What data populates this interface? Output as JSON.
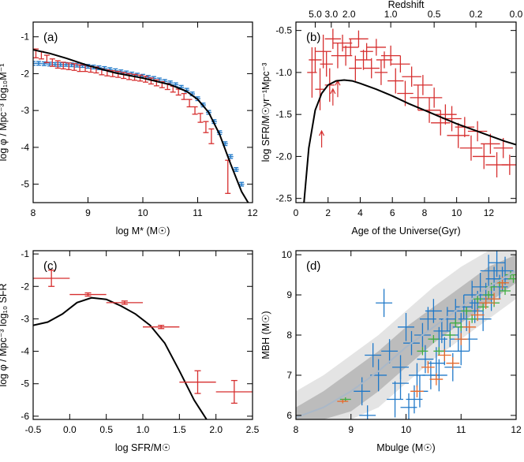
{
  "chart_data": [
    {
      "id": "a",
      "type": "scatter",
      "panel_label": "(a)",
      "xlabel": "log M* (M☉)",
      "ylabel": "log φ / Mpc⁻³ log₁₀M⁻¹",
      "xlim": [
        8,
        12
      ],
      "ylim": [
        -5.5,
        -0.6
      ],
      "xticks": [
        8,
        9,
        10,
        11,
        12
      ],
      "yticks": [
        -1,
        -2,
        -3,
        -4,
        -5
      ],
      "colors": {
        "red": "#d62f2f",
        "blue": "#1f78c8",
        "model": "#000000"
      },
      "series": [
        {
          "style": "red-errorbar",
          "x": [
            8.05,
            8.15,
            8.25,
            8.35,
            8.45,
            8.55,
            8.65,
            8.75,
            8.85,
            8.95,
            9.05,
            9.15,
            9.25,
            9.35,
            9.45,
            9.55,
            9.65,
            9.75,
            9.85,
            9.95,
            10.05,
            10.15,
            10.25,
            10.35,
            10.45,
            10.55,
            10.65,
            10.75,
            10.85,
            10.95,
            11.05,
            11.15,
            11.25,
            11.55
          ],
          "y": [
            -1.45,
            -1.5,
            -1.6,
            -1.7,
            -1.75,
            -1.78,
            -1.8,
            -1.82,
            -1.85,
            -1.85,
            -1.88,
            -1.9,
            -1.95,
            -1.98,
            -2.0,
            -2.02,
            -2.05,
            -2.08,
            -2.1,
            -2.12,
            -2.15,
            -2.2,
            -2.25,
            -2.3,
            -2.35,
            -2.42,
            -2.5,
            -2.62,
            -2.8,
            -3.0,
            -3.2,
            -3.45,
            -3.7,
            -4.8
          ],
          "yerr": [
            0.12,
            0.1,
            0.1,
            0.1,
            0.1,
            0.09,
            0.09,
            0.09,
            0.09,
            0.09,
            0.08,
            0.08,
            0.08,
            0.08,
            0.08,
            0.08,
            0.08,
            0.08,
            0.08,
            0.08,
            0.08,
            0.08,
            0.08,
            0.08,
            0.08,
            0.08,
            0.08,
            0.08,
            0.1,
            0.1,
            0.12,
            0.15,
            0.2,
            0.45
          ]
        },
        {
          "style": "blue-errorbar",
          "x": [
            8.0,
            8.1,
            8.2,
            8.3,
            8.4,
            8.5,
            8.6,
            8.7,
            8.8,
            8.9,
            9.0,
            9.1,
            9.2,
            9.3,
            9.4,
            9.5,
            9.6,
            9.7,
            9.8,
            9.9,
            10.0,
            10.1,
            10.2,
            10.3,
            10.4,
            10.5,
            10.6,
            10.7,
            10.8,
            10.9,
            11.0,
            11.1,
            11.2,
            11.3,
            11.4,
            11.5,
            11.6,
            11.7,
            11.8
          ],
          "y": [
            -1.72,
            -1.72,
            -1.73,
            -1.74,
            -1.75,
            -1.75,
            -1.75,
            -1.76,
            -1.77,
            -1.78,
            -1.8,
            -1.82,
            -1.84,
            -1.86,
            -1.89,
            -1.92,
            -1.95,
            -1.98,
            -2.01,
            -2.04,
            -2.07,
            -2.1,
            -2.13,
            -2.17,
            -2.21,
            -2.25,
            -2.3,
            -2.37,
            -2.45,
            -2.55,
            -2.68,
            -2.85,
            -3.05,
            -3.3,
            -3.6,
            -3.9,
            -4.25,
            -4.6,
            -5.0
          ],
          "xerr": 0.05,
          "yerr": 0.05
        }
      ],
      "model": {
        "x": [
          8.0,
          8.3,
          8.6,
          9.0,
          9.5,
          10.0,
          10.5,
          10.8,
          11.0,
          11.2,
          11.4,
          11.6,
          11.8,
          12.0
        ],
        "y": [
          -1.35,
          -1.45,
          -1.58,
          -1.78,
          -1.98,
          -2.12,
          -2.3,
          -2.48,
          -2.7,
          -3.05,
          -3.65,
          -4.45,
          -5.2,
          -5.7
        ]
      }
    },
    {
      "id": "b",
      "type": "scatter",
      "panel_label": "(b)",
      "xlabel": "Age of the Universe(Gyr)",
      "ylabel": "log SFR/M☉yr⁻¹Mpc⁻³",
      "top_axis_title": "Redshift",
      "top_ticks": [
        {
          "label": "5.0",
          "age": 1.2
        },
        {
          "label": "3.0",
          "age": 2.2
        },
        {
          "label": "2.0",
          "age": 3.3
        },
        {
          "label": "1.0",
          "age": 5.9
        },
        {
          "label": "0.5",
          "age": 8.6
        },
        {
          "label": "0.2",
          "age": 11.2
        },
        {
          "label": "0.0",
          "age": 13.7
        }
      ],
      "xlim": [
        0,
        13.7
      ],
      "ylim": [
        -2.55,
        -0.4
      ],
      "xticks": [
        0,
        2,
        4,
        6,
        8,
        10,
        12
      ],
      "yticks": [
        -0.5,
        -1.0,
        -1.5,
        -2.0,
        -2.5
      ],
      "colors": {
        "red": "#d62f2f",
        "model": "#000000"
      },
      "points": {
        "x": [
          1.0,
          1.2,
          1.5,
          1.7,
          1.9,
          2.1,
          2.3,
          2.6,
          2.9,
          3.1,
          3.4,
          3.7,
          3.9,
          4.2,
          4.4,
          4.7,
          5.0,
          5.3,
          5.5,
          5.9,
          6.2,
          6.5,
          6.8,
          7.2,
          7.6,
          7.9,
          8.3,
          8.6,
          9.0,
          9.3,
          9.7,
          10.1,
          10.5,
          10.9,
          11.3,
          11.7,
          12.1,
          12.5,
          12.9,
          13.3
        ],
        "y": [
          -1.0,
          -0.85,
          -1.2,
          -0.75,
          -0.9,
          -1.15,
          -0.6,
          -0.8,
          -0.65,
          -0.8,
          -0.7,
          -0.95,
          -0.6,
          -0.85,
          -0.75,
          -0.95,
          -0.7,
          -1.0,
          -0.85,
          -0.8,
          -1.1,
          -0.9,
          -1.25,
          -1.05,
          -1.3,
          -1.15,
          -1.45,
          -1.3,
          -1.6,
          -1.5,
          -1.55,
          -1.75,
          -1.65,
          -1.9,
          -1.7,
          -2.0,
          -1.85,
          -2.1,
          -1.9,
          -2.1
        ],
        "xerr": [
          0.3,
          0.4,
          0.3,
          0.5,
          0.4,
          0.3,
          0.5,
          0.4,
          0.6,
          0.4,
          0.5,
          0.4,
          0.6,
          0.5,
          0.4,
          0.5,
          0.6,
          0.4,
          0.5,
          0.6,
          0.5,
          0.6,
          0.5,
          0.6,
          0.5,
          0.6,
          0.7,
          0.5,
          0.6,
          0.7,
          0.6,
          0.7,
          0.6,
          0.7,
          0.6,
          0.7,
          0.6,
          0.7,
          0.6,
          0.5
        ],
        "yerr": [
          0.3,
          0.15,
          0.25,
          0.2,
          0.15,
          0.2,
          0.12,
          0.15,
          0.1,
          0.12,
          0.1,
          0.15,
          0.1,
          0.12,
          0.1,
          0.12,
          0.1,
          0.15,
          0.1,
          0.12,
          0.15,
          0.1,
          0.15,
          0.12,
          0.15,
          0.12,
          0.15,
          0.12,
          0.15,
          0.12,
          0.15,
          0.15,
          0.12,
          0.15,
          0.12,
          0.15,
          0.12,
          0.15,
          0.12,
          0.12
        ]
      },
      "lower_limits": [
        {
          "x": 1.6,
          "y": -1.8
        },
        {
          "x": 2.3,
          "y": -1.3
        },
        {
          "x": 2.6,
          "y": -1.2
        }
      ],
      "model": {
        "x": [
          0.5,
          0.8,
          1.2,
          1.6,
          2.0,
          2.5,
          3.0,
          3.5,
          4.0,
          5.0,
          6.0,
          7.0,
          8.0,
          9.0,
          10.0,
          11.0,
          12.0,
          13.0,
          13.7
        ],
        "y": [
          -2.55,
          -1.9,
          -1.45,
          -1.25,
          -1.15,
          -1.1,
          -1.09,
          -1.1,
          -1.13,
          -1.2,
          -1.28,
          -1.37,
          -1.45,
          -1.53,
          -1.61,
          -1.68,
          -1.75,
          -1.82,
          -1.86
        ]
      }
    },
    {
      "id": "c",
      "type": "scatter",
      "panel_label": "(c)",
      "xlabel": "log SFR/M☉",
      "ylabel": "log φ / Mpc⁻³ log₁₀ SFR",
      "xlim": [
        -0.5,
        2.5
      ],
      "ylim": [
        -6.1,
        -0.9
      ],
      "xticks": [
        -0.5,
        0.0,
        0.5,
        1.0,
        1.5,
        2.0,
        2.5
      ],
      "ytick_values": [
        -1,
        -2,
        -3,
        -4,
        -5,
        -6
      ],
      "colors": {
        "red": "#d62f2f",
        "model": "#000000"
      },
      "points": {
        "x": [
          -0.25,
          0.25,
          0.75,
          1.25,
          1.75,
          2.25
        ],
        "y": [
          -1.75,
          -2.25,
          -2.5,
          -3.25,
          -4.95,
          -5.25
        ],
        "xerr": [
          0.25,
          0.25,
          0.25,
          0.25,
          0.25,
          0.25
        ],
        "yerr": [
          0.25,
          0.05,
          0.05,
          0.05,
          0.35,
          0.35
        ]
      },
      "model": {
        "x": [
          -0.5,
          -0.3,
          -0.1,
          0.1,
          0.3,
          0.5,
          0.7,
          0.9,
          1.1,
          1.3,
          1.5,
          1.7,
          1.9
        ],
        "y": [
          -3.2,
          -3.1,
          -2.85,
          -2.5,
          -2.35,
          -2.4,
          -2.6,
          -2.85,
          -3.2,
          -3.75,
          -4.6,
          -5.5,
          -6.2
        ]
      }
    },
    {
      "id": "d",
      "type": "scatter",
      "panel_label": "(d)",
      "xlabel": "Mbulge (M☉)",
      "ylabel": "MBH (M☉)",
      "xlim": [
        8,
        12
      ],
      "ylim": [
        5.9,
        10.1
      ],
      "xticks": [
        8,
        9,
        10,
        11,
        12
      ],
      "yticks": [
        6,
        7,
        8,
        9,
        10
      ],
      "colors": {
        "blue": "#1f78c8",
        "green": "#3fae3f",
        "orange": "#e8692a",
        "median": "#aab8c8",
        "band_outer": "#e4e4e4",
        "band_inner": "#bcbcbc"
      },
      "band_outer": {
        "x": [
          8.0,
          8.5,
          9.0,
          9.5,
          10.0,
          10.5,
          11.0,
          11.5,
          12.0
        ],
        "lo": [
          5.9,
          5.9,
          5.9,
          6.2,
          6.8,
          7.4,
          7.9,
          8.4,
          8.9
        ],
        "hi": [
          6.6,
          7.0,
          7.5,
          8.0,
          8.6,
          9.2,
          9.7,
          10.1,
          10.1
        ]
      },
      "band_inner": {
        "x": [
          8.0,
          8.5,
          9.0,
          9.5,
          10.0,
          10.5,
          11.0,
          11.5,
          12.0
        ],
        "lo": [
          5.9,
          5.9,
          6.1,
          6.6,
          7.2,
          7.8,
          8.3,
          8.8,
          9.3
        ],
        "hi": [
          6.2,
          6.6,
          7.1,
          7.6,
          8.2,
          8.7,
          9.2,
          9.7,
          10.0
        ]
      },
      "median": {
        "x": [
          8.0,
          8.5,
          9.0,
          9.5,
          10.0,
          10.5,
          11.0,
          11.5,
          12.0
        ],
        "y": [
          5.95,
          6.2,
          6.6,
          7.1,
          7.7,
          8.2,
          8.7,
          9.2,
          9.6
        ]
      },
      "series": [
        {
          "color_key": "blue",
          "x": [
            9.2,
            9.4,
            9.5,
            9.6,
            9.7,
            9.8,
            9.9,
            10.0,
            10.05,
            10.1,
            10.2,
            10.25,
            10.3,
            10.35,
            10.4,
            10.45,
            10.5,
            10.55,
            10.6,
            10.65,
            10.7,
            10.75,
            10.8,
            10.85,
            10.9,
            10.95,
            11.0,
            11.05,
            11.1,
            11.15,
            11.2,
            11.25,
            11.3,
            11.35,
            11.4,
            11.45,
            11.5,
            11.55,
            11.6,
            11.65,
            11.7,
            11.75,
            11.8,
            9.3,
            9.9,
            10.15,
            10.6,
            11.0
          ],
          "y": [
            6.6,
            7.5,
            7.0,
            8.8,
            7.6,
            6.4,
            7.2,
            8.2,
            6.2,
            7.8,
            7.0,
            6.6,
            8.0,
            7.4,
            8.4,
            7.0,
            8.6,
            7.3,
            7.9,
            8.1,
            7.6,
            8.4,
            8.0,
            7.2,
            8.6,
            7.9,
            8.2,
            8.7,
            8.4,
            7.9,
            9.0,
            8.6,
            8.8,
            9.2,
            8.4,
            9.0,
            9.6,
            8.9,
            9.4,
            9.8,
            9.2,
            9.4,
            9.6,
            6.0,
            6.8,
            6.4,
            7.0,
            7.6
          ],
          "xerr": [
            0.15,
            0.15,
            0.15,
            0.15,
            0.15,
            0.15,
            0.15,
            0.15,
            0.15,
            0.15,
            0.15,
            0.15,
            0.15,
            0.15,
            0.15,
            0.15,
            0.15,
            0.15,
            0.15,
            0.15,
            0.15,
            0.15,
            0.15,
            0.15,
            0.15,
            0.15,
            0.15,
            0.15,
            0.15,
            0.15,
            0.15,
            0.15,
            0.15,
            0.15,
            0.15,
            0.15,
            0.15,
            0.15,
            0.15,
            0.15,
            0.15,
            0.15,
            0.15,
            0.15,
            0.15,
            0.15,
            0.15,
            0.15
          ],
          "yerr": [
            0.35,
            0.3,
            0.4,
            0.35,
            0.3,
            0.45,
            0.3,
            0.35,
            0.35,
            0.3,
            0.3,
            0.4,
            0.3,
            0.35,
            0.3,
            0.35,
            0.3,
            0.4,
            0.3,
            0.3,
            0.35,
            0.3,
            0.3,
            0.35,
            0.3,
            0.3,
            0.35,
            0.3,
            0.3,
            0.3,
            0.35,
            0.3,
            0.3,
            0.35,
            0.3,
            0.3,
            0.4,
            0.3,
            0.3,
            0.35,
            0.3,
            0.3,
            0.35,
            0.25,
            0.4,
            0.35,
            0.4,
            0.35
          ]
        },
        {
          "color_key": "green",
          "x": [
            8.9,
            10.3,
            10.5,
            10.6,
            10.8,
            10.9,
            11.0,
            11.1,
            11.2,
            11.3,
            11.4,
            11.5,
            11.55,
            11.6,
            11.7,
            11.8,
            11.9,
            11.95
          ],
          "y": [
            6.4,
            7.6,
            7.9,
            7.6,
            8.0,
            8.3,
            8.2,
            8.6,
            8.4,
            8.9,
            8.7,
            9.0,
            9.2,
            8.8,
            9.3,
            9.1,
            9.5,
            9.4
          ],
          "xerr": [
            0.1,
            0.1,
            0.1,
            0.1,
            0.1,
            0.1,
            0.1,
            0.1,
            0.1,
            0.1,
            0.1,
            0.1,
            0.1,
            0.1,
            0.1,
            0.1,
            0.1,
            0.1
          ],
          "yerr": [
            0.05,
            0.1,
            0.1,
            0.1,
            0.1,
            0.1,
            0.1,
            0.1,
            0.1,
            0.1,
            0.1,
            0.1,
            0.1,
            0.1,
            0.1,
            0.1,
            0.1,
            0.1
          ]
        },
        {
          "color_key": "orange",
          "x": [
            8.85,
            10.2,
            10.4,
            10.55,
            10.7,
            10.85,
            11.0,
            11.15,
            11.3,
            11.45,
            11.6,
            11.75
          ],
          "y": [
            6.35,
            6.6,
            7.2,
            6.9,
            7.5,
            7.3,
            7.9,
            8.2,
            8.5,
            8.8,
            8.9,
            9.3
          ],
          "xerr": [
            0.1,
            0.12,
            0.12,
            0.12,
            0.12,
            0.12,
            0.12,
            0.12,
            0.12,
            0.12,
            0.12,
            0.12
          ],
          "yerr": [
            0.05,
            0.15,
            0.15,
            0.15,
            0.15,
            0.15,
            0.15,
            0.15,
            0.15,
            0.15,
            0.15,
            0.15
          ]
        }
      ]
    }
  ]
}
